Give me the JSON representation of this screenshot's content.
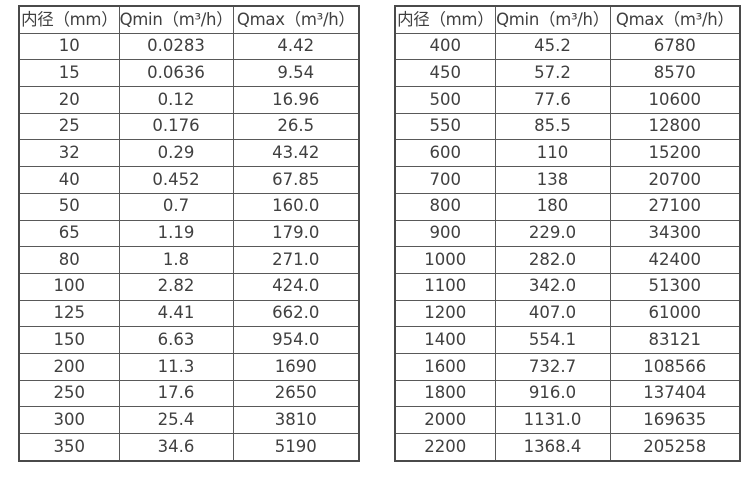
{
  "colors": {
    "background": "#ffffff",
    "text": "#404040",
    "border_outer": "#4a4a4a",
    "border_inner": "#595959"
  },
  "tables": [
    {
      "name": "flow-table-small-diameters",
      "columns": [
        "内径（mm）",
        "Qmin（m³/h）",
        "Qmax（m³/h）"
      ],
      "rows": [
        [
          "10",
          "0.0283",
          "4.42"
        ],
        [
          "15",
          "0.0636",
          "9.54"
        ],
        [
          "20",
          "0.12",
          "16.96"
        ],
        [
          "25",
          "0.176",
          "26.5"
        ],
        [
          "32",
          "0.29",
          "43.42"
        ],
        [
          "40",
          "0.452",
          "67.85"
        ],
        [
          "50",
          "0.7",
          "160.0"
        ],
        [
          "65",
          "1.19",
          "179.0"
        ],
        [
          "80",
          "1.8",
          "271.0"
        ],
        [
          "100",
          "2.82",
          "424.0"
        ],
        [
          "125",
          "4.41",
          "662.0"
        ],
        [
          "150",
          "6.63",
          "954.0"
        ],
        [
          "200",
          "11.3",
          "1690"
        ],
        [
          "250",
          "17.6",
          "2650"
        ],
        [
          "300",
          "25.4",
          "3810"
        ],
        [
          "350",
          "34.6",
          "5190"
        ]
      ]
    },
    {
      "name": "flow-table-large-diameters",
      "columns": [
        "内径（mm）",
        "Qmin（m³/h）",
        "Qmax（m³/h）"
      ],
      "rows": [
        [
          "400",
          "45.2",
          "6780"
        ],
        [
          "450",
          "57.2",
          "8570"
        ],
        [
          "500",
          "77.6",
          "10600"
        ],
        [
          "550",
          "85.5",
          "12800"
        ],
        [
          "600",
          "110",
          "15200"
        ],
        [
          "700",
          "138",
          "20700"
        ],
        [
          "800",
          "180",
          "27100"
        ],
        [
          "900",
          "229.0",
          "34300"
        ],
        [
          "1000",
          "282.0",
          "42400"
        ],
        [
          "1100",
          "342.0",
          "51300"
        ],
        [
          "1200",
          "407.0",
          "61000"
        ],
        [
          "1400",
          "554.1",
          "83121"
        ],
        [
          "1600",
          "732.7",
          "108566"
        ],
        [
          "1800",
          "916.0",
          "137404"
        ],
        [
          "2000",
          "1131.0",
          "169635"
        ],
        [
          "2200",
          "1368.4",
          "205258"
        ]
      ]
    }
  ]
}
